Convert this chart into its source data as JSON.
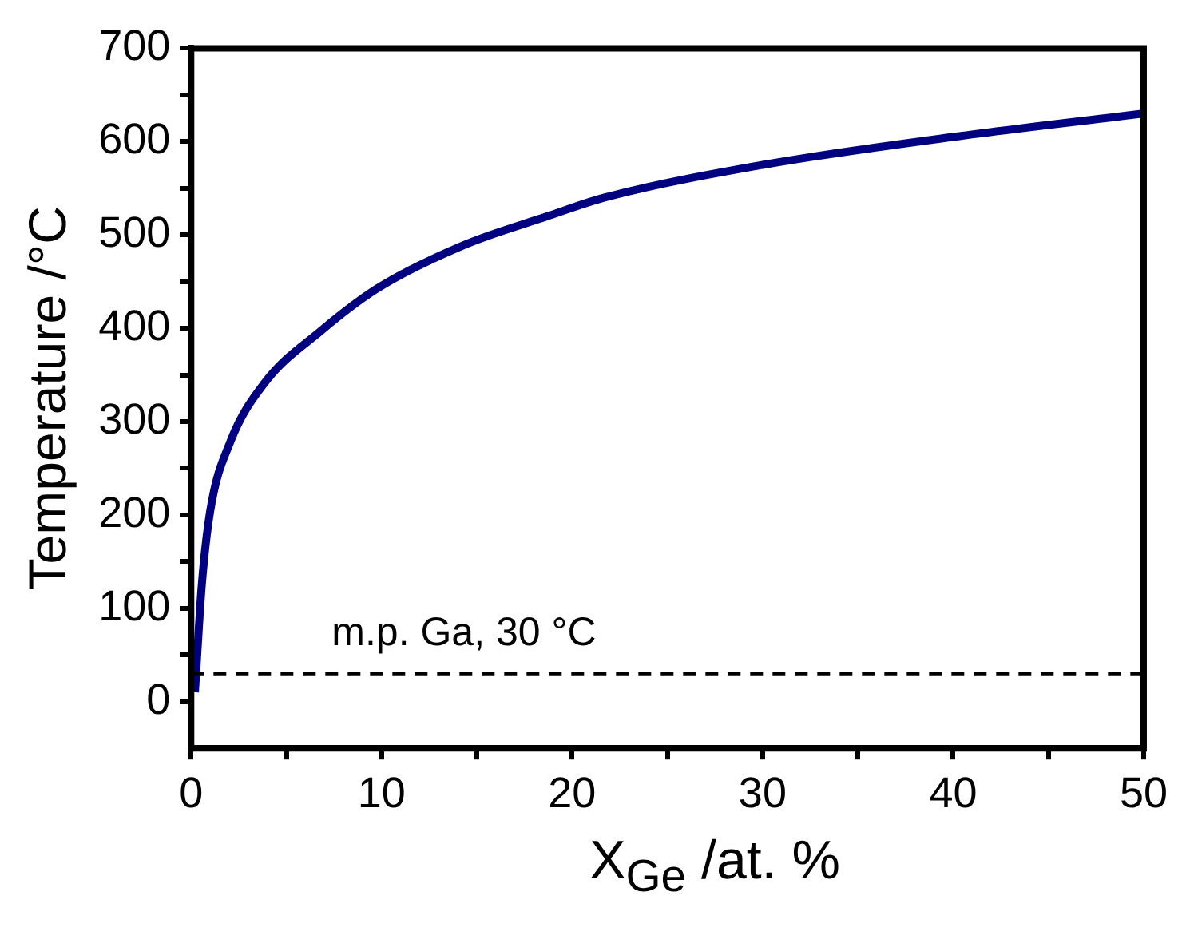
{
  "chart_data": {
    "type": "line",
    "xlabel": "X$_{Ge}$ /at. %",
    "ylabel": "Temperature /°C",
    "series": [
      {
        "color": "#000080",
        "x": [
          0.2,
          0.56,
          1.0,
          2.05,
          3.84,
          6.8,
          9.8,
          14.3,
          18.7,
          21.7,
          30,
          40,
          50
        ],
        "values": [
          10,
          125,
          204,
          278,
          341,
          397,
          443,
          489,
          520,
          540,
          575,
          605,
          630
        ]
      }
    ],
    "xlim": [
      0,
      50
    ],
    "xticks": [
      0,
      {
        "value": 5,
        "label": null
      },
      10,
      {
        "value": 15,
        "label": null
      },
      20,
      {
        "value": 25,
        "label": null
      },
      30,
      {
        "value": 35,
        "label": null
      },
      40,
      {
        "value": 45,
        "label": null
      },
      50
    ],
    "ylim": [
      -50,
      700
    ],
    "yticks": [
      0,
      {
        "value": 50,
        "label": null
      },
      100,
      {
        "value": 150,
        "label": null
      },
      200,
      {
        "value": 250,
        "label": null
      },
      300,
      {
        "value": 350,
        "label": null
      },
      400,
      {
        "value": 450,
        "label": null
      },
      500,
      {
        "value": 550,
        "label": null
      },
      600,
      {
        "value": 650,
        "label": null
      },
      700
    ],
    "ref_lines": [
      {
        "axis": "y",
        "value": 30,
        "label": "m.p. Ga, 30 °C",
        "color": "#000000",
        "line_style": "dashed"
      }
    ],
    "grid": false,
    "legend": false,
    "marker": "none",
    "line_style": "solid"
  }
}
